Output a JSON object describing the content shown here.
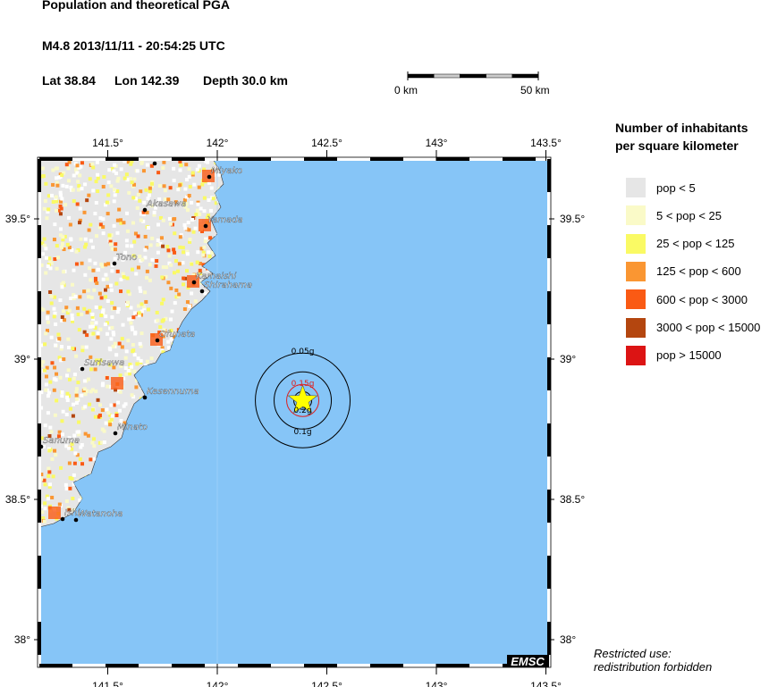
{
  "header": {
    "title": "Population and theoretical PGA",
    "event": "M4.8  2013/11/11 - 20:54:25 UTC",
    "lat": "Lat 38.84",
    "lon": "Lon 142.39",
    "depth": "Depth  30.0 km"
  },
  "scale_bar": {
    "start": "0 km",
    "end": "50 km"
  },
  "axes": {
    "lon_ticks": [
      "141.5°",
      "142°",
      "142.5°",
      "143°",
      "143.5°"
    ],
    "lat_ticks": [
      "39.5°",
      "39°",
      "38.5°",
      "38°"
    ]
  },
  "epicenter": {
    "lat": 38.84,
    "lon": 142.39,
    "color": "#ffff00"
  },
  "pga_contours": [
    {
      "label": "0.05g",
      "color": "#000000"
    },
    {
      "label": "0.1g",
      "color": "#000000"
    },
    {
      "label": "0.15g",
      "color": "#dd2222"
    },
    {
      "label": "0.2g",
      "color": "#000000"
    }
  ],
  "cities": [
    "Miyako",
    "Akasawa",
    "Yamada",
    "Tono",
    "Kamaishi",
    "Shirahama",
    "Ofunata",
    "Surisawa",
    "Kesennuma",
    "Minato",
    "Sanuma",
    "Ishi",
    "Watanoha"
  ],
  "colors": {
    "sea": "#86c5f7",
    "land": "#e6e6e6"
  },
  "legend": {
    "title_line1": "Number of inhabitants",
    "title_line2": "per square kilometer",
    "items": [
      {
        "label": "pop < 5",
        "color": "#e6e6e6"
      },
      {
        "label": "5 < pop < 25",
        "color": "#fafac8"
      },
      {
        "label": "25 < pop < 125",
        "color": "#fafa64"
      },
      {
        "label": "125 < pop < 600",
        "color": "#fa9632"
      },
      {
        "label": "600 < pop < 3000",
        "color": "#fa5a14"
      },
      {
        "label": "3000 < pop < 15000",
        "color": "#b4460f"
      },
      {
        "label": "pop > 15000",
        "color": "#dc1414"
      }
    ]
  },
  "logo": "EMSC",
  "disclaimer": {
    "line1": "Restricted use:",
    "line2": "redistribution forbidden"
  }
}
